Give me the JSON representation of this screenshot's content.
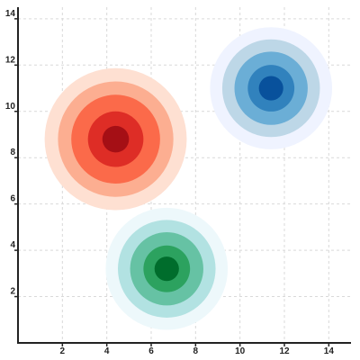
{
  "chart_data": {
    "type": "scatter",
    "title": "",
    "xlabel": "",
    "ylabel": "",
    "xlim": [
      0,
      15
    ],
    "ylim": [
      0,
      14.5
    ],
    "x_ticks": [
      2,
      4,
      6,
      8,
      10,
      12,
      14
    ],
    "y_ticks": [
      2,
      4,
      6,
      8,
      10,
      12,
      14
    ],
    "grid": true,
    "legend": "none",
    "series": [
      {
        "x": 4.4,
        "y": 8.8,
        "radii": [
          3.2,
          2.6,
          2.0,
          1.25,
          0.6
        ],
        "colors": [
          "#fee0d2",
          "#fcae91",
          "#fb6a4a",
          "#de2d26",
          "#a50f15"
        ]
      },
      {
        "x": 11.4,
        "y": 11.0,
        "radii": [
          2.75,
          2.2,
          1.65,
          1.05,
          0.55
        ],
        "colors": [
          "#eff3ff",
          "#bdd7e7",
          "#6baed6",
          "#3182bd",
          "#08519c"
        ]
      },
      {
        "x": 6.7,
        "y": 3.2,
        "radii": [
          2.75,
          2.2,
          1.65,
          1.05,
          0.55
        ],
        "colors": [
          "#edf8fb",
          "#b2e2e2",
          "#66c2a4",
          "#2ca25f",
          "#006d2c"
        ]
      }
    ]
  }
}
